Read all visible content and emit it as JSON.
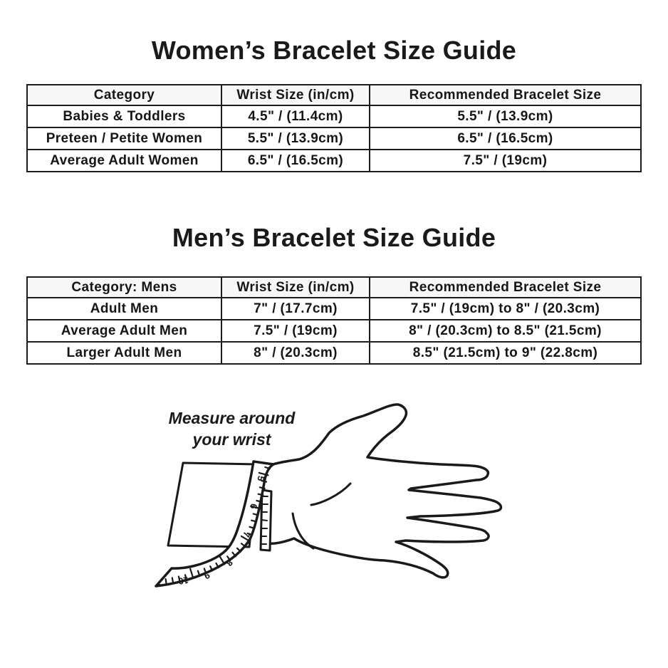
{
  "page": {
    "background_color": "#ffffff",
    "ink_color": "#1a1a1a",
    "table_header_bg": "#f7f7f7"
  },
  "women_section": {
    "title": "Women’s Bracelet Size Guide",
    "table": {
      "headers": [
        "Category",
        "Wrist Size (in/cm)",
        "Recommended Bracelet Size"
      ],
      "rows": [
        [
          "Babies & Toddlers",
          "4.5\" / (11.4cm)",
          "5.5\" / (13.9cm)"
        ],
        [
          "Preteen / Petite Women",
          "5.5\" / (13.9cm)",
          "6.5\" / (16.5cm)"
        ],
        [
          "Average Adult Women",
          "6.5\" / (16.5cm)",
          "7.5\" / (19cm)"
        ]
      ]
    }
  },
  "men_section": {
    "title": "Men’s Bracelet Size Guide",
    "table": {
      "headers": [
        "Category: Mens",
        "Wrist Size (in/cm)",
        "Recommended Bracelet Size"
      ],
      "rows": [
        [
          "Adult Men",
          "7\" / (17.7cm)",
          "7.5\" / (19cm) to 8\" / (20.3cm)"
        ],
        [
          "Average Adult Men",
          "7.5\" / (19cm)",
          "8\" / (20.3cm) to 8.5\" (21.5cm)"
        ],
        [
          "Larger Adult Men",
          "8\" / (20.3cm)",
          "8.5\" (21.5cm) to 9\" (22.8cm)"
        ]
      ]
    }
  },
  "illustration": {
    "caption_line1": "Measure around",
    "caption_line2": "your wrist",
    "tape_numbers": [
      "5",
      "6",
      "7",
      "8",
      "9",
      "10"
    ]
  }
}
